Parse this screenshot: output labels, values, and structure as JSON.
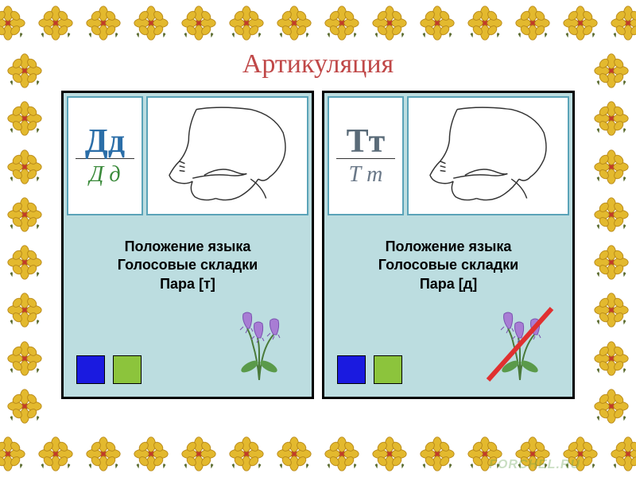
{
  "slide": {
    "title": "Артикуляция",
    "title_color": "#c04848",
    "title_fontsize": 34,
    "watermark": "FORCHEL.RU",
    "watermark_color": "rgba(100,160,80,0.35)"
  },
  "border": {
    "flower_primary": "#e3b92e",
    "flower_secondary": "#b8891a",
    "leaf_color": "#5a6b2e",
    "accent_red": "#c23b2a",
    "count_top": 14,
    "count_side": 10
  },
  "panels": [
    {
      "id": "left",
      "panel_bg": "#bcdde0",
      "letter_print": "Дд",
      "letter_script": "Д д",
      "letter_print_color": "#2b6ea8",
      "letter_script_color": "#3a8a3a",
      "label_line1": "Положение языка",
      "label_line2": "Голосовые складки",
      "label_line3": "Пара [т]",
      "square1_color": "#1a1ae0",
      "square2_color": "#8cc43c",
      "flower_strike": false
    },
    {
      "id": "right",
      "panel_bg": "#bcdde0",
      "letter_print": "Тт",
      "letter_script": "Т т",
      "letter_print_color": "#5a6b78",
      "letter_script_color": "#6a7888",
      "label_line1": "Положение языка",
      "label_line2": "Голосовые складки",
      "label_line3": "Пара [д]",
      "square1_color": "#1a1ae0",
      "square2_color": "#8cc43c",
      "flower_strike": true,
      "strike_color": "#e03030"
    }
  ],
  "bellflower": {
    "petal_color": "#a87dd4",
    "petal_dark": "#7a52b0",
    "stem_color": "#4a7a3a",
    "leaf_color": "#5a9a4a"
  },
  "mouth_diagram": {
    "stroke": "#333333",
    "stroke_width": 1.5
  }
}
